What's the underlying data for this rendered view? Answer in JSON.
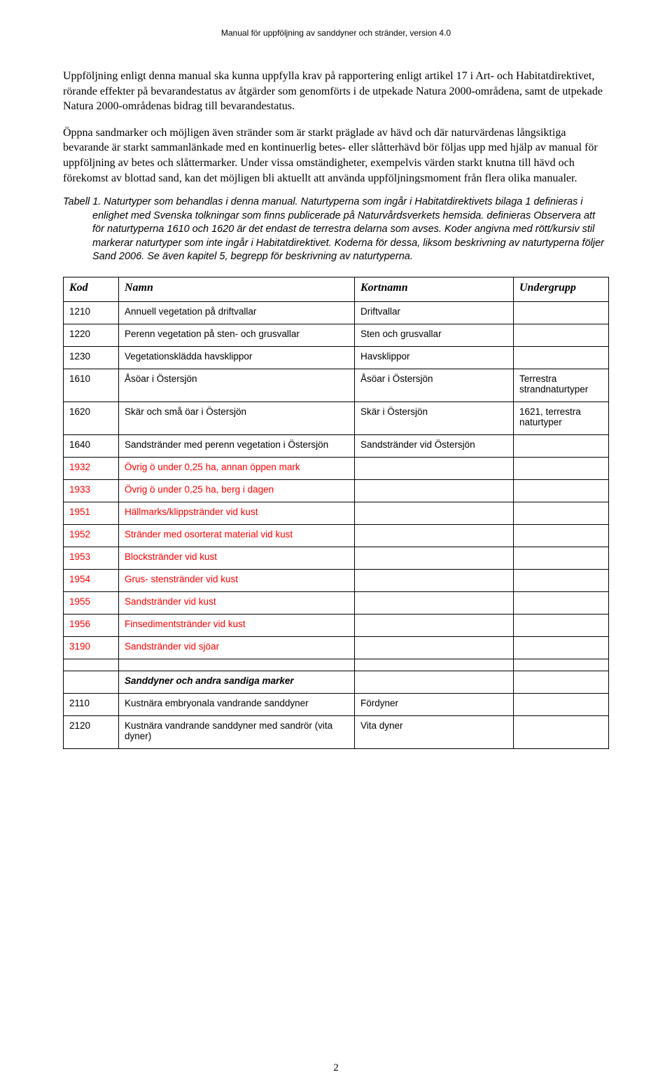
{
  "colors": {
    "text": "#000000",
    "background": "#ffffff",
    "red": "#ff0000",
    "border": "#000000"
  },
  "header": "Manual för uppföljning av sanddyner och stränder, version 4.0",
  "paragraphs": {
    "p1": "Uppföljning enligt denna manual ska kunna uppfylla krav på rapportering enligt artikel 17 i Art- och Habitatdirektivet, rörande effekter på bevarandestatus av åtgärder som genomförts i de utpekade Natura 2000-områdena, samt de utpekade Natura 2000-områdenas bidrag till bevarandestatus.",
    "p2": "Öppna sandmarker och möjligen även stränder som är starkt präglade av hävd och där naturvärdenas långsiktiga bevarande är starkt sammanlänkade med en kontinuerlig betes- eller slåtterhävd bör följas upp med hjälp av manual för uppföljning av betes och slåttermarker. Under vissa omständigheter, exempelvis värden starkt knutna till hävd och förekomst av blottad sand, kan det möjligen bli aktuellt att använda uppföljningsmoment från flera olika manualer.",
    "caption": "Tabell 1.  Naturtyper som behandlas i denna manual. Naturtyperna som ingår i Habitatdirektivets bilaga 1 definieras i enlighet med Svenska tolkningar som finns publicerade på Naturvårdsverkets hemsida. definieras Observera att för naturtyperna 1610 och 1620 är det endast de terrestra delarna som avses. Koder angivna med rött/kursiv stil markerar naturtyper som inte ingår i Habitatdirektivet. Koderna för dessa, liksom beskrivning av naturtyperna följer Sand 2006. Se även kapitel 5, begrepp för beskrivning av naturtyperna."
  },
  "table": {
    "headers": {
      "kod": "Kod",
      "namn": "Namn",
      "kort": "Kortnamn",
      "under": "Undergrupp"
    },
    "rows": [
      {
        "kod": "1210",
        "namn": "Annuell vegetation på driftvallar",
        "kort": "Driftvallar",
        "under": ""
      },
      {
        "kod": "1220",
        "namn": "Perenn vegetation på sten- och grusvallar",
        "kort": "Sten och grusvallar",
        "under": ""
      },
      {
        "kod": "1230",
        "namn": "Vegetationsklädda havsklippor",
        "kort": "Havsklippor",
        "under": ""
      },
      {
        "kod": "1610",
        "namn": "Åsöar i Östersjön",
        "kort": "Åsöar i Östersjön",
        "under": "Terrestra strandnaturtyper"
      },
      {
        "kod": "1620",
        "namn": "Skär och små öar i Östersjön",
        "kort": "Skär i Östersjön",
        "under": "1621, terrestra naturtyper"
      },
      {
        "kod": "1640",
        "namn": "Sandstränder med perenn vegetation i Östersjön",
        "kort": "Sandstränder vid Östersjön",
        "under": ""
      },
      {
        "kod": "1932",
        "namn": "Övrig ö under 0,25 ha, annan öppen mark",
        "kort": "",
        "under": "",
        "red": true
      },
      {
        "kod": "1933",
        "namn": "Övrig ö under 0,25 ha, berg i dagen",
        "kort": "",
        "under": "",
        "red": true
      },
      {
        "kod": "1951",
        "namn": "Hällmarks/klippstränder vid kust",
        "kort": "",
        "under": "",
        "red": true
      },
      {
        "kod": "1952",
        "namn": "Stränder med osorterat material vid kust",
        "kort": "",
        "under": "",
        "red": true
      },
      {
        "kod": "1953",
        "namn": "Blockstränder vid kust",
        "kort": "",
        "under": "",
        "red": true
      },
      {
        "kod": "1954",
        "namn": "Grus- stenstränder vid kust",
        "kort": "",
        "under": "",
        "red": true
      },
      {
        "kod": "1955",
        "namn": "Sandstränder vid kust",
        "kort": "",
        "under": "",
        "red": true
      },
      {
        "kod": "1956",
        "namn": "Finsedimentstränder vid kust",
        "kort": "",
        "under": "",
        "red": true
      },
      {
        "kod": "3190",
        "namn": "Sandstränder vid sjöar",
        "kort": "",
        "under": "",
        "red": true
      }
    ],
    "section_label": "Sanddyner och andra sandiga marker",
    "rows2": [
      {
        "kod": "2110",
        "namn": "Kustnära embryonala vandrande sanddyner",
        "kort": "Fördyner",
        "under": ""
      },
      {
        "kod": "2120",
        "namn": "Kustnära vandrande sanddyner med sandrör (vita dyner)",
        "kort": "Vita dyner",
        "under": ""
      }
    ]
  },
  "page_number": "2"
}
